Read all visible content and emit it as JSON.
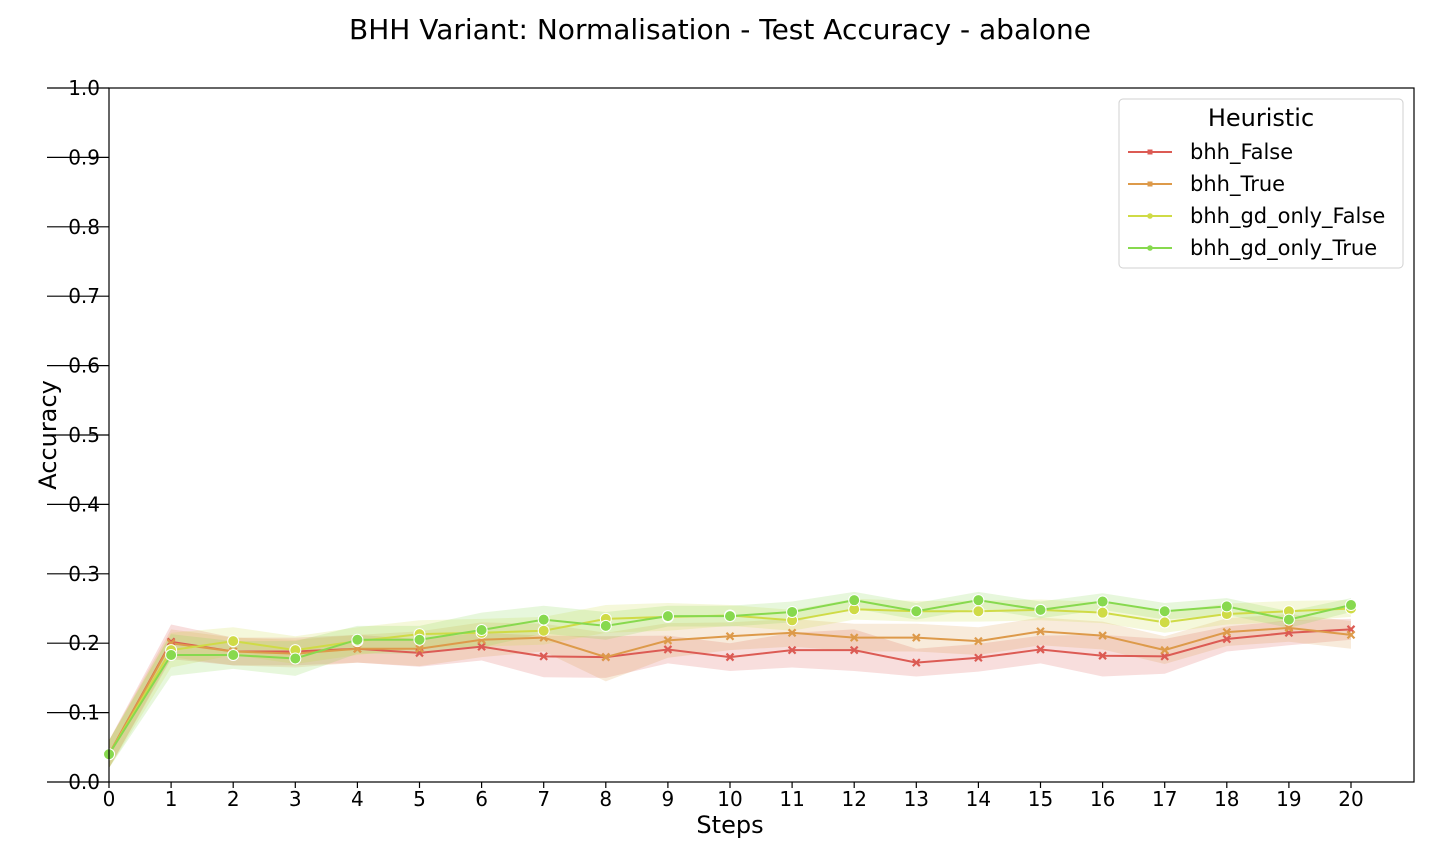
{
  "chart_data": {
    "type": "line",
    "title": "BHH Variant: Normalisation - Test Accuracy - abalone",
    "xlabel": "Steps",
    "ylabel": "Accuracy",
    "xlim": [
      0,
      21
    ],
    "ylim": [
      0,
      1.0
    ],
    "xticks": [
      "0",
      "1",
      "2",
      "3",
      "4",
      "5",
      "6",
      "7",
      "8",
      "9",
      "10",
      "11",
      "12",
      "13",
      "14",
      "15",
      "16",
      "17",
      "18",
      "19",
      "20"
    ],
    "yticks": [
      "0.0",
      "0.1",
      "0.2",
      "0.3",
      "0.4",
      "0.5",
      "0.6",
      "0.7",
      "0.8",
      "0.9",
      "1.0"
    ],
    "x": [
      0,
      1,
      2,
      3,
      4,
      5,
      6,
      7,
      8,
      9,
      10,
      11,
      12,
      13,
      14,
      15,
      16,
      17,
      18,
      19,
      20
    ],
    "legend": {
      "title": "Heuristic",
      "placement": "top-right"
    },
    "series": [
      {
        "name": "bhh_False",
        "color": "#dc5b54",
        "marker": "x",
        "values": [
          0.04,
          0.202,
          0.188,
          0.188,
          0.192,
          0.186,
          0.195,
          0.181,
          0.18,
          0.191,
          0.18,
          0.19,
          0.19,
          0.172,
          0.179,
          0.191,
          0.182,
          0.181,
          0.206,
          0.215,
          0.22
        ],
        "band": [
          0.02,
          0.025,
          0.02,
          0.02,
          0.02,
          0.02,
          0.02,
          0.03,
          0.03,
          0.02,
          0.02,
          0.025,
          0.03,
          0.02,
          0.02,
          0.02,
          0.03,
          0.025,
          0.018,
          0.018,
          0.015
        ]
      },
      {
        "name": "bhh_True",
        "color": "#dd9a4a",
        "marker": "x",
        "values": [
          0.04,
          0.2,
          0.188,
          0.185,
          0.192,
          0.192,
          0.205,
          0.208,
          0.18,
          0.204,
          0.21,
          0.215,
          0.208,
          0.208,
          0.203,
          0.217,
          0.211,
          0.19,
          0.216,
          0.222,
          0.212
        ],
        "band": [
          0.02,
          0.02,
          0.02,
          0.02,
          0.02,
          0.025,
          0.025,
          0.02,
          0.035,
          0.025,
          0.02,
          0.02,
          0.02,
          0.02,
          0.02,
          0.02,
          0.02,
          0.02,
          0.02,
          0.02,
          0.02
        ]
      },
      {
        "name": "bhh_gd_only_False",
        "color": "#cfdb46",
        "marker": "o",
        "values": [
          0.04,
          0.19,
          0.203,
          0.19,
          0.203,
          0.213,
          0.215,
          0.218,
          0.235,
          0.238,
          0.24,
          0.233,
          0.249,
          0.246,
          0.246,
          0.248,
          0.244,
          0.23,
          0.242,
          0.246,
          0.25
        ],
        "band": [
          0.02,
          0.025,
          0.02,
          0.02,
          0.02,
          0.02,
          0.02,
          0.02,
          0.02,
          0.02,
          0.015,
          0.015,
          0.015,
          0.015,
          0.015,
          0.015,
          0.015,
          0.015,
          0.015,
          0.015,
          0.012
        ]
      },
      {
        "name": "bhh_gd_only_True",
        "color": "#87d94e",
        "marker": "o",
        "values": [
          0.04,
          0.183,
          0.183,
          0.178,
          0.205,
          0.205,
          0.219,
          0.234,
          0.225,
          0.239,
          0.239,
          0.245,
          0.262,
          0.246,
          0.262,
          0.248,
          0.26,
          0.246,
          0.253,
          0.234,
          0.255
        ],
        "band": [
          0.02,
          0.03,
          0.02,
          0.025,
          0.02,
          0.02,
          0.025,
          0.02,
          0.02,
          0.015,
          0.015,
          0.015,
          0.012,
          0.012,
          0.012,
          0.012,
          0.012,
          0.012,
          0.012,
          0.012,
          0.01
        ]
      }
    ]
  }
}
